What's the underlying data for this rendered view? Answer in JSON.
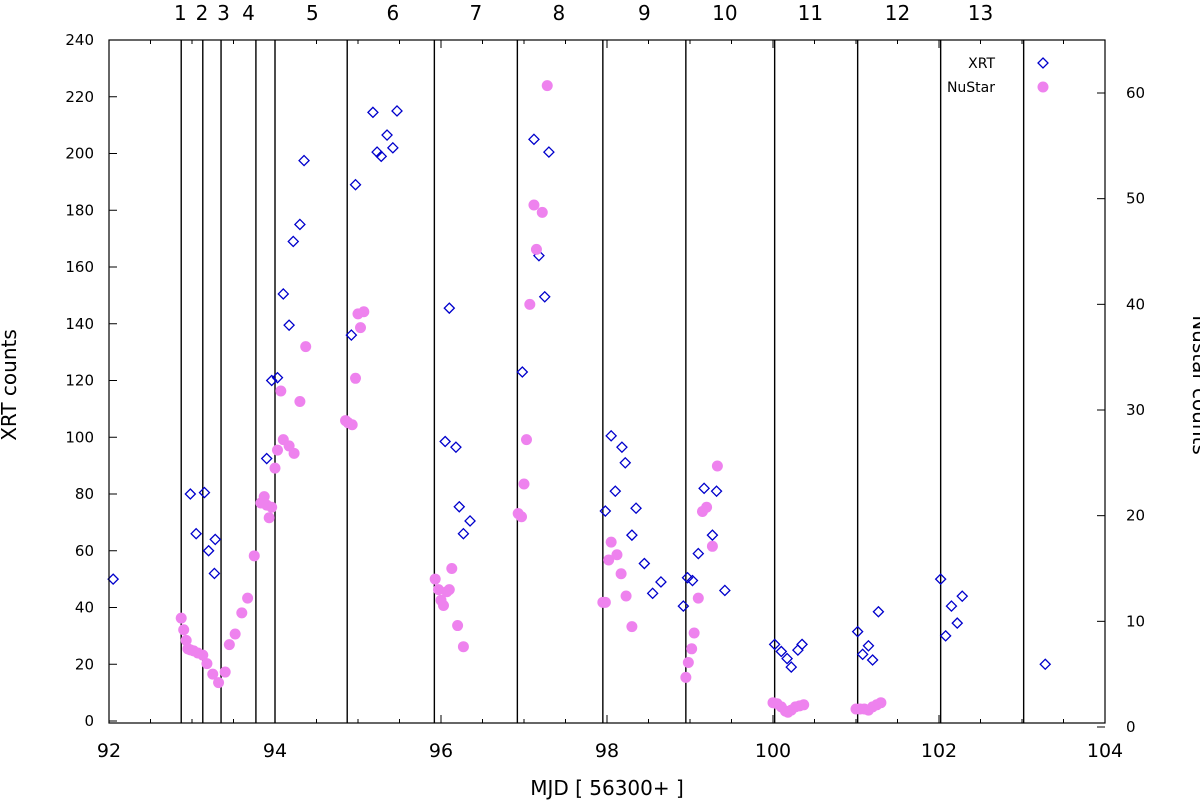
{
  "chart_data": {
    "type": "scatter",
    "xlabel": "MJD [ 56300+ ]",
    "ylabel": "XRT counts",
    "y2label": "Nustar counts",
    "xlim": [
      92,
      104
    ],
    "ylim": [
      -2,
      240
    ],
    "y2lim": [
      0,
      65
    ],
    "xticks": [
      92,
      94,
      96,
      98,
      100,
      102,
      104
    ],
    "yticks": [
      0,
      20,
      40,
      60,
      80,
      100,
      120,
      140,
      160,
      180,
      200,
      220,
      240
    ],
    "y2ticks": [
      0,
      10,
      20,
      30,
      40,
      50,
      60
    ],
    "grid": false,
    "legend_position": "top-right",
    "intervals": {
      "boundaries": [
        92.87,
        93.13,
        93.35,
        93.77,
        94.0,
        94.87,
        95.92,
        96.92,
        97.95,
        98.95,
        100.02,
        101.02,
        102.02,
        103.02
      ],
      "labels": [
        "1",
        "2",
        "3",
        "4",
        "5",
        "6",
        "7",
        "8",
        "9",
        "10",
        "11",
        "12",
        "13"
      ],
      "label_x": [
        92.86,
        93.12,
        93.38,
        93.68,
        94.45,
        95.42,
        96.42,
        97.42,
        98.45,
        99.42,
        100.45,
        101.5,
        102.5
      ]
    },
    "series": [
      {
        "name": "XRT",
        "axis": "left",
        "marker": "diamond",
        "color": "#0000cc",
        "points": [
          [
            92.05,
            50
          ],
          [
            92.98,
            80
          ],
          [
            93.05,
            66
          ],
          [
            93.15,
            80.5
          ],
          [
            93.2,
            60
          ],
          [
            93.28,
            64
          ],
          [
            93.27,
            52
          ],
          [
            93.9,
            92.5
          ],
          [
            93.96,
            120
          ],
          [
            94.03,
            121
          ],
          [
            94.1,
            150.5
          ],
          [
            94.17,
            139.5
          ],
          [
            94.22,
            169
          ],
          [
            94.3,
            175
          ],
          [
            94.35,
            197.5
          ],
          [
            94.92,
            136
          ],
          [
            94.97,
            189
          ],
          [
            95.18,
            214.5
          ],
          [
            95.23,
            200.5
          ],
          [
            95.28,
            199
          ],
          [
            95.35,
            206.5
          ],
          [
            95.42,
            202
          ],
          [
            95.47,
            215
          ],
          [
            96.05,
            98.5
          ],
          [
            96.1,
            145.5
          ],
          [
            96.18,
            96.5
          ],
          [
            96.22,
            75.5
          ],
          [
            96.27,
            66
          ],
          [
            96.35,
            70.5
          ],
          [
            96.98,
            123
          ],
          [
            97.12,
            205
          ],
          [
            97.18,
            164
          ],
          [
            97.25,
            149.5
          ],
          [
            97.3,
            200.5
          ],
          [
            97.98,
            74
          ],
          [
            98.05,
            100.5
          ],
          [
            98.1,
            81
          ],
          [
            98.18,
            96.5
          ],
          [
            98.22,
            91
          ],
          [
            98.3,
            65.5
          ],
          [
            98.35,
            75
          ],
          [
            98.45,
            55.5
          ],
          [
            98.55,
            45
          ],
          [
            98.65,
            49
          ],
          [
            98.92,
            40.5
          ],
          [
            98.97,
            50.5
          ],
          [
            99.03,
            49.5
          ],
          [
            99.1,
            59
          ],
          [
            99.17,
            82
          ],
          [
            99.27,
            65.5
          ],
          [
            99.32,
            81
          ],
          [
            99.42,
            46
          ],
          [
            100.02,
            27
          ],
          [
            100.1,
            24.5
          ],
          [
            100.17,
            22
          ],
          [
            100.22,
            19
          ],
          [
            100.3,
            25
          ],
          [
            100.35,
            27
          ],
          [
            101.02,
            31.5
          ],
          [
            101.08,
            23.5
          ],
          [
            101.15,
            26.5
          ],
          [
            101.2,
            21.5
          ],
          [
            101.27,
            38.5
          ],
          [
            102.02,
            50
          ],
          [
            102.08,
            30
          ],
          [
            102.15,
            40.5
          ],
          [
            102.22,
            34.5
          ],
          [
            102.28,
            44
          ],
          [
            103.28,
            20
          ]
        ]
      },
      {
        "name": "NuStar",
        "axis": "right",
        "marker": "circle",
        "color": "#ee82ee",
        "points": [
          [
            92.87,
            10.3
          ],
          [
            92.9,
            9.2
          ],
          [
            92.93,
            8.2
          ],
          [
            92.95,
            7.4
          ],
          [
            92.98,
            7.3
          ],
          [
            93.02,
            7.2
          ],
          [
            93.07,
            7.0
          ],
          [
            93.13,
            6.8
          ],
          [
            93.18,
            6.0
          ],
          [
            93.25,
            5.0
          ],
          [
            93.32,
            4.2
          ],
          [
            93.4,
            5.2
          ],
          [
            93.45,
            7.8
          ],
          [
            93.52,
            8.8
          ],
          [
            93.6,
            10.8
          ],
          [
            93.67,
            12.2
          ],
          [
            93.75,
            16.2
          ],
          [
            93.83,
            21.2
          ],
          [
            93.87,
            21.8
          ],
          [
            93.9,
            21.0
          ],
          [
            93.93,
            19.8
          ],
          [
            93.96,
            20.8
          ],
          [
            94.0,
            24.5
          ],
          [
            94.03,
            26.2
          ],
          [
            94.07,
            31.8
          ],
          [
            94.1,
            27.2
          ],
          [
            94.17,
            26.6
          ],
          [
            94.23,
            25.9
          ],
          [
            94.3,
            30.8
          ],
          [
            94.37,
            36.0
          ],
          [
            94.85,
            29.0
          ],
          [
            94.88,
            28.8
          ],
          [
            94.93,
            28.6
          ],
          [
            94.97,
            33.0
          ],
          [
            95.0,
            39.1
          ],
          [
            95.03,
            37.8
          ],
          [
            95.07,
            39.3
          ],
          [
            95.93,
            14.0
          ],
          [
            95.97,
            13.0
          ],
          [
            96.0,
            12.0
          ],
          [
            96.03,
            11.5
          ],
          [
            96.07,
            12.8
          ],
          [
            96.1,
            13.0
          ],
          [
            96.13,
            15.0
          ],
          [
            96.2,
            9.6
          ],
          [
            96.27,
            7.6
          ],
          [
            96.93,
            20.2
          ],
          [
            96.97,
            19.9
          ],
          [
            97.0,
            23.0
          ],
          [
            97.03,
            27.2
          ],
          [
            97.07,
            40.0
          ],
          [
            97.12,
            49.4
          ],
          [
            97.15,
            45.2
          ],
          [
            97.22,
            48.7
          ],
          [
            97.28,
            60.7
          ],
          [
            97.95,
            11.8
          ],
          [
            97.98,
            11.8
          ],
          [
            98.02,
            15.8
          ],
          [
            98.05,
            17.5
          ],
          [
            98.12,
            16.3
          ],
          [
            98.17,
            14.5
          ],
          [
            98.23,
            12.4
          ],
          [
            98.3,
            9.5
          ],
          [
            98.95,
            4.7
          ],
          [
            98.98,
            6.1
          ],
          [
            99.02,
            7.4
          ],
          [
            99.05,
            8.9
          ],
          [
            99.1,
            12.2
          ],
          [
            99.15,
            20.4
          ],
          [
            99.2,
            20.8
          ],
          [
            99.27,
            17.1
          ],
          [
            99.33,
            24.7
          ],
          [
            100.0,
            2.3
          ],
          [
            100.05,
            2.2
          ],
          [
            100.1,
            1.9
          ],
          [
            100.15,
            1.5
          ],
          [
            100.18,
            1.4
          ],
          [
            100.22,
            1.6
          ],
          [
            100.27,
            1.9
          ],
          [
            100.32,
            2.0
          ],
          [
            100.37,
            2.1
          ],
          [
            101.0,
            1.7
          ],
          [
            101.05,
            1.7
          ],
          [
            101.1,
            1.7
          ],
          [
            101.15,
            1.6
          ],
          [
            101.2,
            1.9
          ],
          [
            101.25,
            2.1
          ],
          [
            101.3,
            2.3
          ]
        ]
      }
    ]
  }
}
